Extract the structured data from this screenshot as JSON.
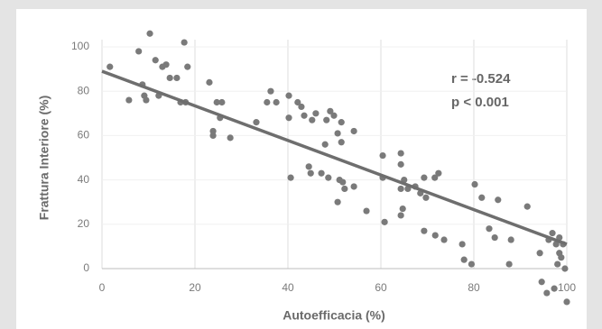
{
  "chart_data": {
    "type": "scatter",
    "xlabel": "Autoefficacia (%)",
    "ylabel": "Frattura Interiore (%)",
    "annotations": [
      "r = -0.524",
      "p < 0.001"
    ],
    "color": "#7a7a7a",
    "fit_color": "#6e6e6e",
    "grid": true,
    "xlim": [
      0,
      100
    ],
    "ylim": [
      -20,
      110
    ],
    "xticks": [
      0,
      20,
      40,
      60,
      80,
      100
    ],
    "yticks": [
      0,
      20,
      40,
      60,
      80,
      100
    ],
    "fit": {
      "x": [
        0,
        100
      ],
      "y": [
        89,
        11
      ]
    },
    "x": [
      1.7,
      5.8,
      7.9,
      8.7,
      9.1,
      9.5,
      10.3,
      11.5,
      12.2,
      13,
      13.8,
      14.6,
      16.1,
      16.9,
      17.7,
      18.4,
      18,
      23.1,
      23.9,
      23.9,
      24.7,
      25.8,
      25.4,
      27.6,
      33.2,
      35.5,
      36.3,
      37.5,
      40.2,
      40.2,
      40.6,
      42.1,
      42.9,
      43.5,
      44.5,
      44.9,
      45.2,
      46,
      47.2,
      48,
      48.3,
      48.7,
      49.1,
      49.9,
      50.7,
      51.5,
      51.5,
      51.1,
      51.8,
      52.2,
      50.7,
      54.2,
      54.2,
      56.9,
      60.4,
      60.4,
      60.8,
      64.3,
      64.3,
      64.3,
      64.7,
      64.3,
      65,
      65.8,
      67.4,
      68.5,
      69.3,
      69.7,
      69.3,
      71.6,
      72.4,
      71.7,
      73.6,
      77.5,
      77.9,
      79.5,
      80.2,
      81.7,
      83.3,
      84.5,
      85.2,
      87.6,
      88,
      91.5,
      94.2,
      94.6,
      95.7,
      96.1,
      96.9,
      97.3,
      97.7,
      98,
      98.4,
      98.4,
      98.8,
      99.2,
      99.6,
      100
    ],
    "y": [
      91,
      76,
      98,
      83,
      78,
      76,
      106,
      94,
      78,
      91,
      92,
      86,
      86,
      75,
      102,
      91,
      75,
      84,
      62,
      60,
      75,
      75,
      68,
      59,
      66,
      75,
      80,
      75,
      78,
      68,
      41,
      75,
      73,
      69,
      46,
      43,
      67,
      70,
      43,
      56,
      67,
      41,
      71,
      69,
      61,
      66,
      57,
      40,
      39,
      36,
      30,
      37,
      62,
      26,
      51,
      41,
      21,
      52,
      47,
      36,
      27,
      24,
      40,
      36,
      37,
      34,
      41,
      32,
      17,
      41,
      43,
      15,
      13,
      11,
      4,
      2,
      38,
      32,
      18,
      14,
      31,
      2,
      13,
      28,
      7,
      -6,
      -11,
      13,
      16,
      -9,
      11,
      2,
      14,
      7,
      5,
      11,
      0,
      -15
    ]
  }
}
